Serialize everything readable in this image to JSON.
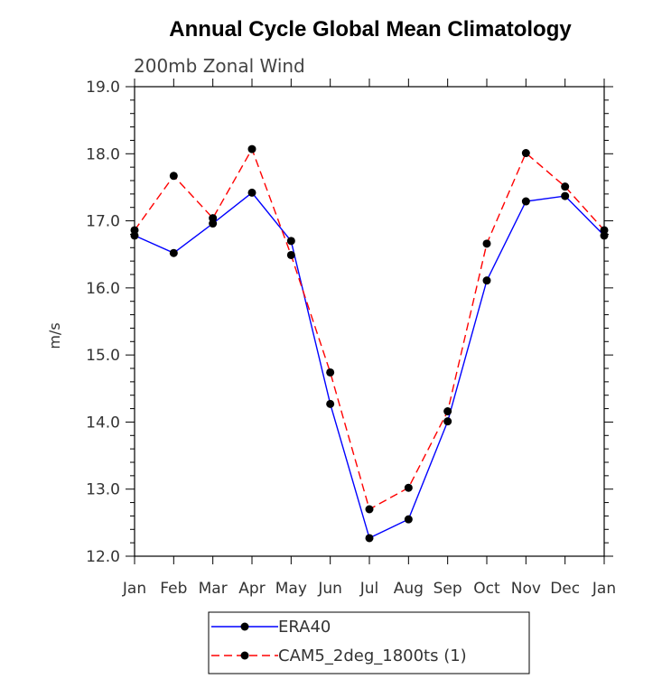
{
  "chart_data": {
    "type": "line",
    "title": "Annual Cycle Global Mean Climatology",
    "subtitle": "200mb Zonal Wind",
    "xlabel": "",
    "ylabel": "m/s",
    "categories": [
      "Jan",
      "Feb",
      "Mar",
      "Apr",
      "May",
      "Jun",
      "Jul",
      "Aug",
      "Sep",
      "Oct",
      "Nov",
      "Dec",
      "Jan"
    ],
    "ylim": [
      12.0,
      19.0
    ],
    "yticks": [
      "12.0",
      "13.0",
      "14.0",
      "15.0",
      "16.0",
      "17.0",
      "18.0",
      "19.0"
    ],
    "grid": false,
    "legend_position": "bottom",
    "series": [
      {
        "name": "ERA40",
        "color": "#0000ff",
        "style": "solid",
        "values": [
          16.78,
          16.52,
          16.96,
          17.42,
          16.7,
          14.27,
          12.27,
          12.55,
          14.01,
          16.11,
          17.29,
          17.37,
          16.78
        ]
      },
      {
        "name": "CAM5_2deg_1800ts (1)",
        "color": "#ff0000",
        "style": "dashed",
        "values": [
          16.86,
          17.67,
          17.04,
          18.07,
          16.49,
          14.74,
          12.7,
          13.02,
          14.16,
          16.66,
          18.01,
          17.51,
          16.86
        ]
      }
    ]
  }
}
